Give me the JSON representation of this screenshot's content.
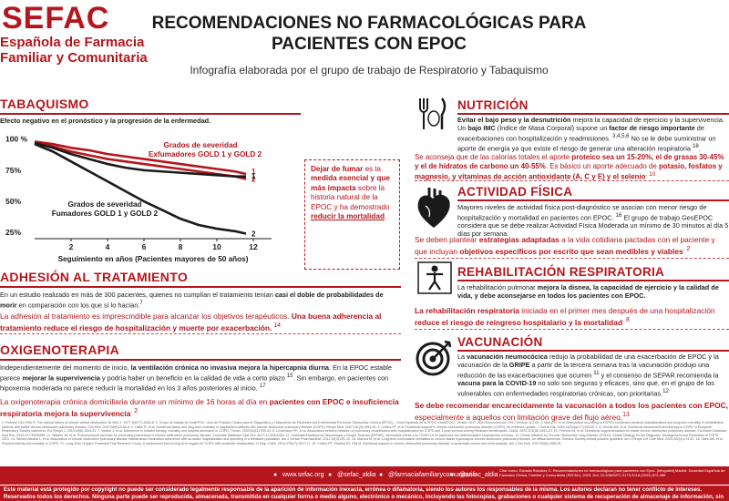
{
  "header": {
    "logo_mark": "SEFAC",
    "logo_line1": "Española de Farmacia",
    "logo_line2": "Familiar y Comunitaria",
    "title_line1": "RECOMENDACIONES NO FARMACOLÓGICAS PARA",
    "title_line2": "PACIENTES CON EPOC",
    "subtitle": "Infografía elaborada por el grupo de trabajo de Respiratorio y Tabaquismo"
  },
  "tabaquismo": {
    "title": "TABAQUISMO",
    "intro": "Efecto negativo en el pronóstico y la progresión de la enfermedad.",
    "box_parts": [
      "Dejar de fumar",
      " es la ",
      "medida esencial y que más impacta",
      " sobre la historia natural de la EPOC y ha demostrado ",
      "reducir la mortalidad",
      "."
    ]
  },
  "chart_data": {
    "type": "line",
    "xlabel": "Seguimiento en años (Pacientes mayores de 50 años)",
    "x_ticks": [
      2,
      4,
      6,
      8,
      10,
      12
    ],
    "y_ticks": [
      "100 %",
      "75%",
      "50%",
      "25%"
    ],
    "y_tick_values": [
      100,
      75,
      50,
      25
    ],
    "xlim": [
      0,
      13
    ],
    "ylim": [
      20,
      102
    ],
    "legend_ex_line1": "Grados de severidad",
    "legend_ex_line2": "Exfumadores GOLD 1 y GOLD 2",
    "legend_fu_line1": "Grados de severidad",
    "legend_fu_line2": "Fumadores GOLD 1 y GOLD 2",
    "series": [
      {
        "name": "Exfumadores GOLD 1",
        "end_label": "1",
        "color": "#b5161d",
        "x": [
          0,
          1,
          2,
          3,
          4,
          5,
          6,
          7,
          8,
          9,
          10,
          11,
          11.6
        ],
        "y": [
          98,
          96,
          93,
          91,
          88,
          86,
          84,
          82,
          80,
          78,
          76,
          74,
          72
        ]
      },
      {
        "name": "Exfumadores GOLD 2",
        "end_label": "2",
        "color": "#b5161d",
        "x": [
          0,
          1,
          2,
          3,
          4,
          5,
          6,
          7,
          8,
          9,
          10,
          11,
          11.6
        ],
        "y": [
          97,
          94,
          90,
          87,
          84,
          82,
          80,
          78,
          76,
          74,
          72,
          70,
          68
        ]
      },
      {
        "name": "Fumadores GOLD 1",
        "end_label": "1",
        "color": "#1a1a1a",
        "x": [
          0,
          1,
          2,
          3,
          4,
          5,
          6,
          7,
          8,
          9,
          10,
          11,
          11.6
        ],
        "y": [
          97,
          93,
          88,
          84,
          80,
          77,
          75,
          74,
          73,
          72,
          71,
          70,
          70
        ]
      },
      {
        "name": "Fumadores GOLD 2",
        "end_label": "2",
        "color": "#1a1a1a",
        "x": [
          0,
          1,
          2,
          3,
          4,
          5,
          6,
          7,
          8,
          9,
          10,
          11,
          11.6
        ],
        "y": [
          96,
          90,
          82,
          74,
          66,
          58,
          50,
          43,
          36,
          31,
          28,
          26,
          24
        ]
      }
    ]
  },
  "adhesion": {
    "title": "ADHESIÓN AL TRATAMIENTO",
    "text_parts": [
      "En un estudio realizado en más de 300 pacientes, quienes no cumplían el tratamiento tenían ",
      "casi el doble de probabilidades de morir",
      " en comparación con los que sí lo hacían.",
      "7"
    ],
    "red_parts": [
      "La adhesión al tratamiento es imprescindible para alcanzar los objetivos terapéuticos. ",
      "Una buena adherencia al tratamiento reduce el riesgo de hospitalización y muerte por exacerbación.",
      " 14"
    ]
  },
  "oxigeno": {
    "title": "OXIGENOTERAPIA",
    "text_parts": [
      "Independientemente del momento de inicio, ",
      "la ventilación crónica no invasiva mejora la hipercapnia diurna",
      ". En la EPOC estable parece ",
      "mejorar la supervivencia",
      " y podría haber un beneficio en la calidad de vida a corto plazo ",
      "15",
      ". Sin embargo, en pacientes con hipoxemia moderada no parece reducir la mortalidad en los 3 años posteriores al inicio. ",
      "17"
    ],
    "red_parts": [
      "La oxigenoterapia crónica domiciliaria durante un mínimo de 16 horas al día en ",
      "pacientes con EPOC e insuficiencia respiratoria mejora la supervivencia",
      ". 2"
    ]
  },
  "nutricion": {
    "title": "NUTRICIÓN",
    "text_parts": [
      "Evitar el bajo peso y la desnutrición",
      " mejora la capacidad de ejercicio y la supervivencia. Un ",
      "bajo IMC",
      " (Índice de Masa Corporal) supone un ",
      "factor de riesgo importante",
      " de exacerbaciones con hospitalización y readmisiones. ",
      "3,4,5,6",
      " No se le debe suministrar un aporte de energía ya que existe el riesgo de generar una alteración respiratoria ",
      "18",
      "."
    ],
    "red_parts": [
      "Se aconseja que de las calorías totales el aporte ",
      "proteico sea un 15-20%, el de grasas 30-45% y el de hidratos de carbono un 40-55%",
      ". Es básico un aporte adecuado de ",
      "potasio, fosfatos y magnesio",
      ", y vitaminas de acción antioxidante (A, C y E) y el selenio",
      ". 10"
    ]
  },
  "actividad": {
    "title": "ACTIVIDAD FÍSICA",
    "text_parts": [
      "Mayores niveles de actividad física post-diagnóstico se asocian con menor riesgo de hospitalización y mortalidad en pacientes con EPOC. ",
      "16",
      " El grupo de trabajo GesEPOC considera que se debe realizar Actividad Física Moderada un mínimo de 30 minutos al día 5 días por semana."
    ],
    "red_parts": [
      "Se deben plantear ",
      "estrategias adaptadas",
      " a la vida cotidiana pactadas con el paciente y que incluyan ",
      "objetivos específicos por escrito que sean medibles y viables",
      ". 2"
    ]
  },
  "rehabilitacion": {
    "title": "REHABILITACIÓN RESPIRATORIA",
    "text_parts": [
      "La rehabilitación pulmonar ",
      "mejora la disnea, la capacidad de ejercicio y la calidad de vida",
      ", y debe aconsejarse en todos los pacientes con EPOC."
    ],
    "red_parts": [
      "La rehabilitación respiratoria",
      " iniciada en el primer mes después de una hospitalización ",
      "reduce el riesgo de reingreso hospitalario y la mortalidad",
      ". 8"
    ]
  },
  "vacunacion": {
    "title": "VACUNACIÓN",
    "text_parts": [
      "La ",
      "vacunación neumocócica",
      " redujo la probabilidad de una exacerbación de EPOC y la vacunación de la ",
      "GRIPE",
      " a partir de la tercera semana tras la vacunación produjo una reducción de las exacerbaciones que ocurren ",
      "11",
      " y el consenso de SEPAR recomienda la ",
      "vacuna para la COVID-19",
      " no solo son seguras y eficaces, sino que, en el grupo de los vulnerables con enfermedades respiratorias crónicas, son prioritarias.",
      "12"
    ],
    "red_parts": [
      "Se debe recomendar encarecidamente la vacunación a todos los pacientes con EPOC,",
      " especialmente a aquellos con limitación grave del flujo aéreo.",
      "13"
    ]
  },
  "references": "1. Fletcher CM, Peto R. The natural history of chronic airflow obstruction. Br Med J. 1977;1(6077):1645-8. 2. Grupo de trabajo de GesEPOC. Guía de Práctica Clínica para el Diagnóstico y Tratamiento de Pacientes con Enfermedad Pulmonar Obstructiva Crónica (EPOC) – Guía Española de la EPOC (GesEPOC). Versión 2017. Arch Bronconeumol. 2017;53(Supl 1):2-64. 3. Marco E, et al. Malnutrition according to ESPEN consensus predicts hospitalizations and long-term mortality in rehabilitation patients with stable chronic obstructive pulmonary disease. Clin Nutr. 2019;38(5):2180-6. 4. Hallin R, et al. Nutritional status and long-term mortality in hospitalised patients with chronic obstructive pulmonary disease (COPD). Respir Med. 2007;101(9):1954-60. 5. Collins PF, et al. Nutritional support in chronic obstructive pulmonary disease (COPD): an evidence update. J Thorac Dis. 2019;11(Suppl 17):S2230-7. 6. Schols AM, et al. Nutritional assessment and therapy in COPD: a European Respiratory Society statement. Eur Respir J. 2014;44(6):1504-20. 7. Vestbo J, et al. Adherence to inhaled therapy, mortality and hospital admission in COPD. Thorax. 2009;64(11):939-43. 8. Lindenauer PK, et al. Association between initiation of pulmonary rehabilitation after hospitalization for COPD and 1-year survival among Medicare beneficiaries. JAMA. 2020;323(18):1813-23. 10. Ferreira IM, et al. Nutritional supplementation for stable chronic obstructive pulmonary disease. Cochrane Database Syst Rev. 2012;12:CD000998. 11. Walters JA, et al. Pneumococcal vaccines for preventing pneumonia in chronic obstructive pulmonary disease. Cochrane Database Syst Rev. 2017;1:CD001390. 12. Sociedad Española de Neumología y Cirugía Torácica (SEPAR). Vacunación frente a la COVID-19 en pacientes con enfermedades respiratorias crónicas. 13. Global Initiative for Chronic Obstructive Lung Disease (GOLD). Global Strategy for the Diagnosis, Management and Prevention of COPD. 2021. 14. Simoni-Wastila L, et al. Association of chronic obstructive pulmonary disease maintenance medication adherence with all-cause hospitalization and spending in a Medicare population. Am J Geriatr Pharmacother. 2012;10(3):201-10. 15. Macrea M, et al. Long-term noninvasive ventilation in chronic stable hypercapnic chronic obstructive pulmonary disease. An official American Thoracic Society clinical practice guideline. Am J Respir Crit Care Med. 2020;202(4):e74-87. 16. Vaes AW, et al. Physical activity and mortality in COPD. 17. Long-Term Oxygen Treatment Trial Research Group. A randomized trial of long-term oxygen for COPD with moderate desaturation. N Engl J Med. 2016;375(17):1617-27. 18. Collins PF, Stratton RJ, Elia M. Nutritional support in chronic obstructive pulmonary disease: a systematic review and meta-analysis. Am J Clin Nutr. 2012;95(6):1385-95.",
  "footer": {
    "site": "www.sefac.org",
    "twitter": "@sefac_aldia",
    "facebook": "@farmaciafamiliarycomunitaria",
    "instagram": "@sefac_aldia",
    "cite": "Cítar como: Estrada Riolobos G. Recomendaciones no farmacológicas para pacientes con Epoc. [Infografía] Madrid: Sociedad Española de Farmacia Clínica, Familiar y Comunitaria (SEFAC); 2023. Doi: 10.33620/FC.2173-9218.(2023).IFG.080",
    "copyright": "Este material está protegido por copyright no puede ser considerado legalmente responsable de la aparición de información inexacta, errónea o difamatoria, siendo los autores los responsables de la misma. Los autores declaran no tener conflicto de intereses. Reservados todos los derechos. Ninguna parte puede ser reproducida, almacenada, transmitida en cualquier forma o medio alguno, electrónico o mecánico, incluyendo las fotocopias, grabaciones o cualquier sistema de recuperación de almacenaje de información, sin permiso del titular del copyright."
  }
}
